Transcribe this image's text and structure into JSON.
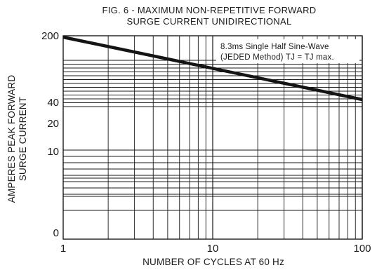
{
  "chart_data": {
    "type": "line",
    "title": [
      "FIG. 6 - MAXIMUM NON-REPETITIVE FORWARD",
      "SURGE CURRENT UNIDIRECTIONAL"
    ],
    "xlabel": "NUMBER OF CYCLES AT 60 Hz",
    "ylabel": [
      "AMPERES PEAK FORWARD",
      "SURGE CURRENT"
    ],
    "x_scale": "log",
    "xlim": [
      1,
      100
    ],
    "x_ticks": [
      1,
      10,
      100
    ],
    "x_tick_labels": [
      "1",
      "10",
      "100"
    ],
    "y_tick_labels": [
      "200",
      "40",
      "20",
      "10",
      "0"
    ],
    "annotation": [
      "8.3ms Single Half Sine-Wave",
      "(JEDED Method) TJ = TJ max."
    ],
    "grid": true,
    "series": [
      {
        "x": [
          1,
          100
        ],
        "y": [
          200,
          40
        ]
      }
    ],
    "line_color": "#141414"
  }
}
